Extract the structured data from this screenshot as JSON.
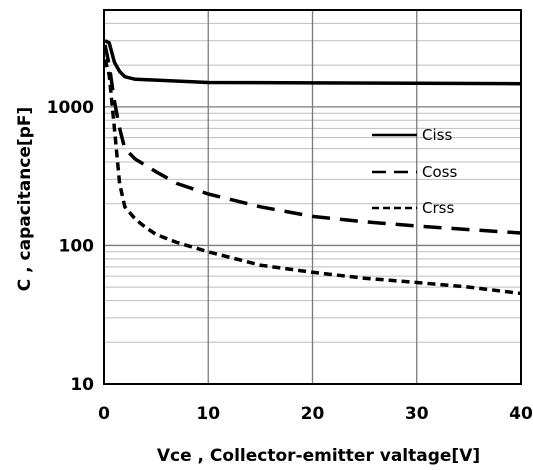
{
  "chart_data": {
    "type": "line",
    "title": "",
    "xlabel": "Vce , Collector-emitter valtage[V]",
    "ylabel": "C , capacitance[pF]",
    "xlim": [
      0,
      40
    ],
    "ylim": [
      10,
      5000
    ],
    "y_scale": "log",
    "grid": true,
    "legend_position": "right",
    "x_ticks": [
      0,
      10,
      20,
      30,
      40
    ],
    "x_tick_labels": [
      "0",
      "10",
      "20",
      "30",
      "40"
    ],
    "y_ticks": [
      10,
      100,
      1000
    ],
    "y_tick_labels": [
      "10",
      "100",
      "1000"
    ],
    "series": [
      {
        "name": "Ciss",
        "line_style": "solid",
        "color": "#000000",
        "x": [
          0.1,
          0.5,
          1,
          1.5,
          2,
          3,
          5,
          10,
          20,
          30,
          40
        ],
        "y": [
          3000,
          2900,
          2100,
          1800,
          1650,
          1580,
          1560,
          1500,
          1490,
          1480,
          1470
        ]
      },
      {
        "name": "Coss",
        "line_style": "long-dash",
        "color": "#000000",
        "x": [
          0.1,
          0.5,
          1,
          1.5,
          2,
          3,
          5,
          7,
          10,
          15,
          20,
          25,
          30,
          35,
          40
        ],
        "y": [
          2800,
          2000,
          1100,
          700,
          500,
          420,
          340,
          280,
          235,
          190,
          162,
          148,
          138,
          130,
          123
        ]
      },
      {
        "name": "Crss",
        "line_style": "short-dash",
        "color": "#000000",
        "x": [
          0.1,
          0.5,
          1,
          1.5,
          2,
          3,
          4,
          5,
          7,
          10,
          15,
          20,
          25,
          30,
          35,
          40
        ],
        "y": [
          2200,
          1700,
          700,
          280,
          190,
          155,
          135,
          120,
          105,
          90,
          72,
          64,
          58,
          54,
          50,
          45
        ]
      }
    ]
  }
}
